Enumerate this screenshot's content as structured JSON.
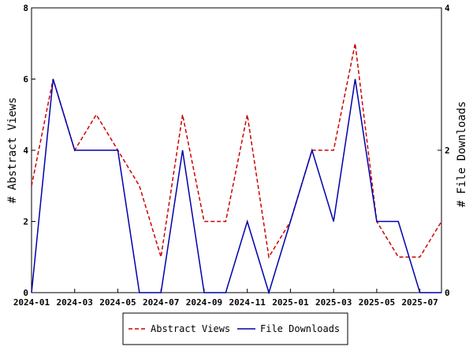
{
  "chart_data": {
    "type": "line",
    "x": [
      "2024-01",
      "2024-02",
      "2024-03",
      "2024-04",
      "2024-05",
      "2024-06",
      "2024-07",
      "2024-08",
      "2024-09",
      "2024-10",
      "2024-11",
      "2024-12",
      "2025-01",
      "2025-02",
      "2025-03",
      "2025-04",
      "2025-05",
      "2025-06",
      "2025-07",
      "2025-08"
    ],
    "x_ticks": [
      "2024-01",
      "2024-03",
      "2024-05",
      "2024-07",
      "2024-09",
      "2024-11",
      "2025-01",
      "2025-03",
      "2025-05",
      "2025-07"
    ],
    "series": [
      {
        "name": "Abstract Views",
        "axis": "left",
        "color": "#cc0000",
        "dash": "dashed",
        "values": [
          3,
          6,
          4,
          5,
          4,
          3,
          1,
          5,
          2,
          2,
          5,
          1,
          2,
          4,
          4,
          7,
          2,
          1,
          1,
          2
        ]
      },
      {
        "name": "File Downloads",
        "axis": "right",
        "color": "#0000aa",
        "dash": "solid",
        "values": [
          0,
          3,
          2,
          2,
          2,
          0,
          0,
          2,
          0,
          0,
          1,
          0,
          1,
          2,
          1,
          3,
          1,
          1,
          0,
          0
        ]
      }
    ],
    "ylabel_left": "# Abstract Views",
    "ylabel_right": "# File Downloads",
    "ylim_left": [
      0,
      8
    ],
    "ylim_right": [
      0,
      4
    ],
    "yticks_left": [
      0,
      2,
      4,
      6,
      8
    ],
    "yticks_right": [
      0,
      2,
      4
    ],
    "legend_placement": "bottom-center",
    "grid": false
  }
}
